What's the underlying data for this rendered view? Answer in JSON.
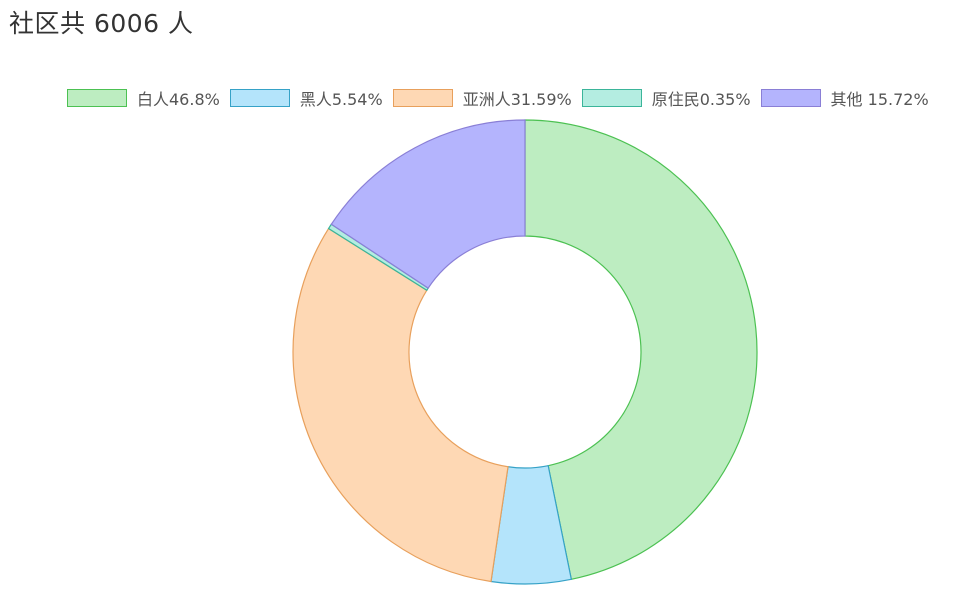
{
  "title": "社区共 6006 人",
  "legend": {
    "items": [
      {
        "label": "白人46.8%",
        "fill": "#bdedc1",
        "stroke": "#4cc152"
      },
      {
        "label": "黑人5.54%",
        "fill": "#b4e4fb",
        "stroke": "#36a2c7"
      },
      {
        "label": "亚洲人31.59%",
        "fill": "#fed8b4",
        "stroke": "#e8a05c"
      },
      {
        "label": "原住民0.35%",
        "fill": "#b4ede1",
        "stroke": "#3bb59a"
      },
      {
        "label": "其他 15.72%",
        "fill": "#b4b4fd",
        "stroke": "#8a7fd6"
      }
    ]
  },
  "chart_data": {
    "type": "pie",
    "subtype": "donut",
    "title": "社区共 6006 人",
    "total": 6006,
    "categories": [
      "白人",
      "黑人",
      "亚洲人",
      "原住民",
      "其他"
    ],
    "values": [
      46.8,
      5.54,
      31.59,
      0.35,
      15.72
    ],
    "unit": "%",
    "legend_labels": [
      "白人46.8%",
      "黑人5.54%",
      "亚洲人31.59%",
      "原住民0.35%",
      "其他 15.72%"
    ],
    "colors": [
      "#bdedc1",
      "#b4e4fb",
      "#fed8b4",
      "#b4ede1",
      "#b4b4fd"
    ],
    "start_angle": "12 o'clock, clockwise",
    "legend_position": "top",
    "inner_radius_ratio": 0.5
  }
}
